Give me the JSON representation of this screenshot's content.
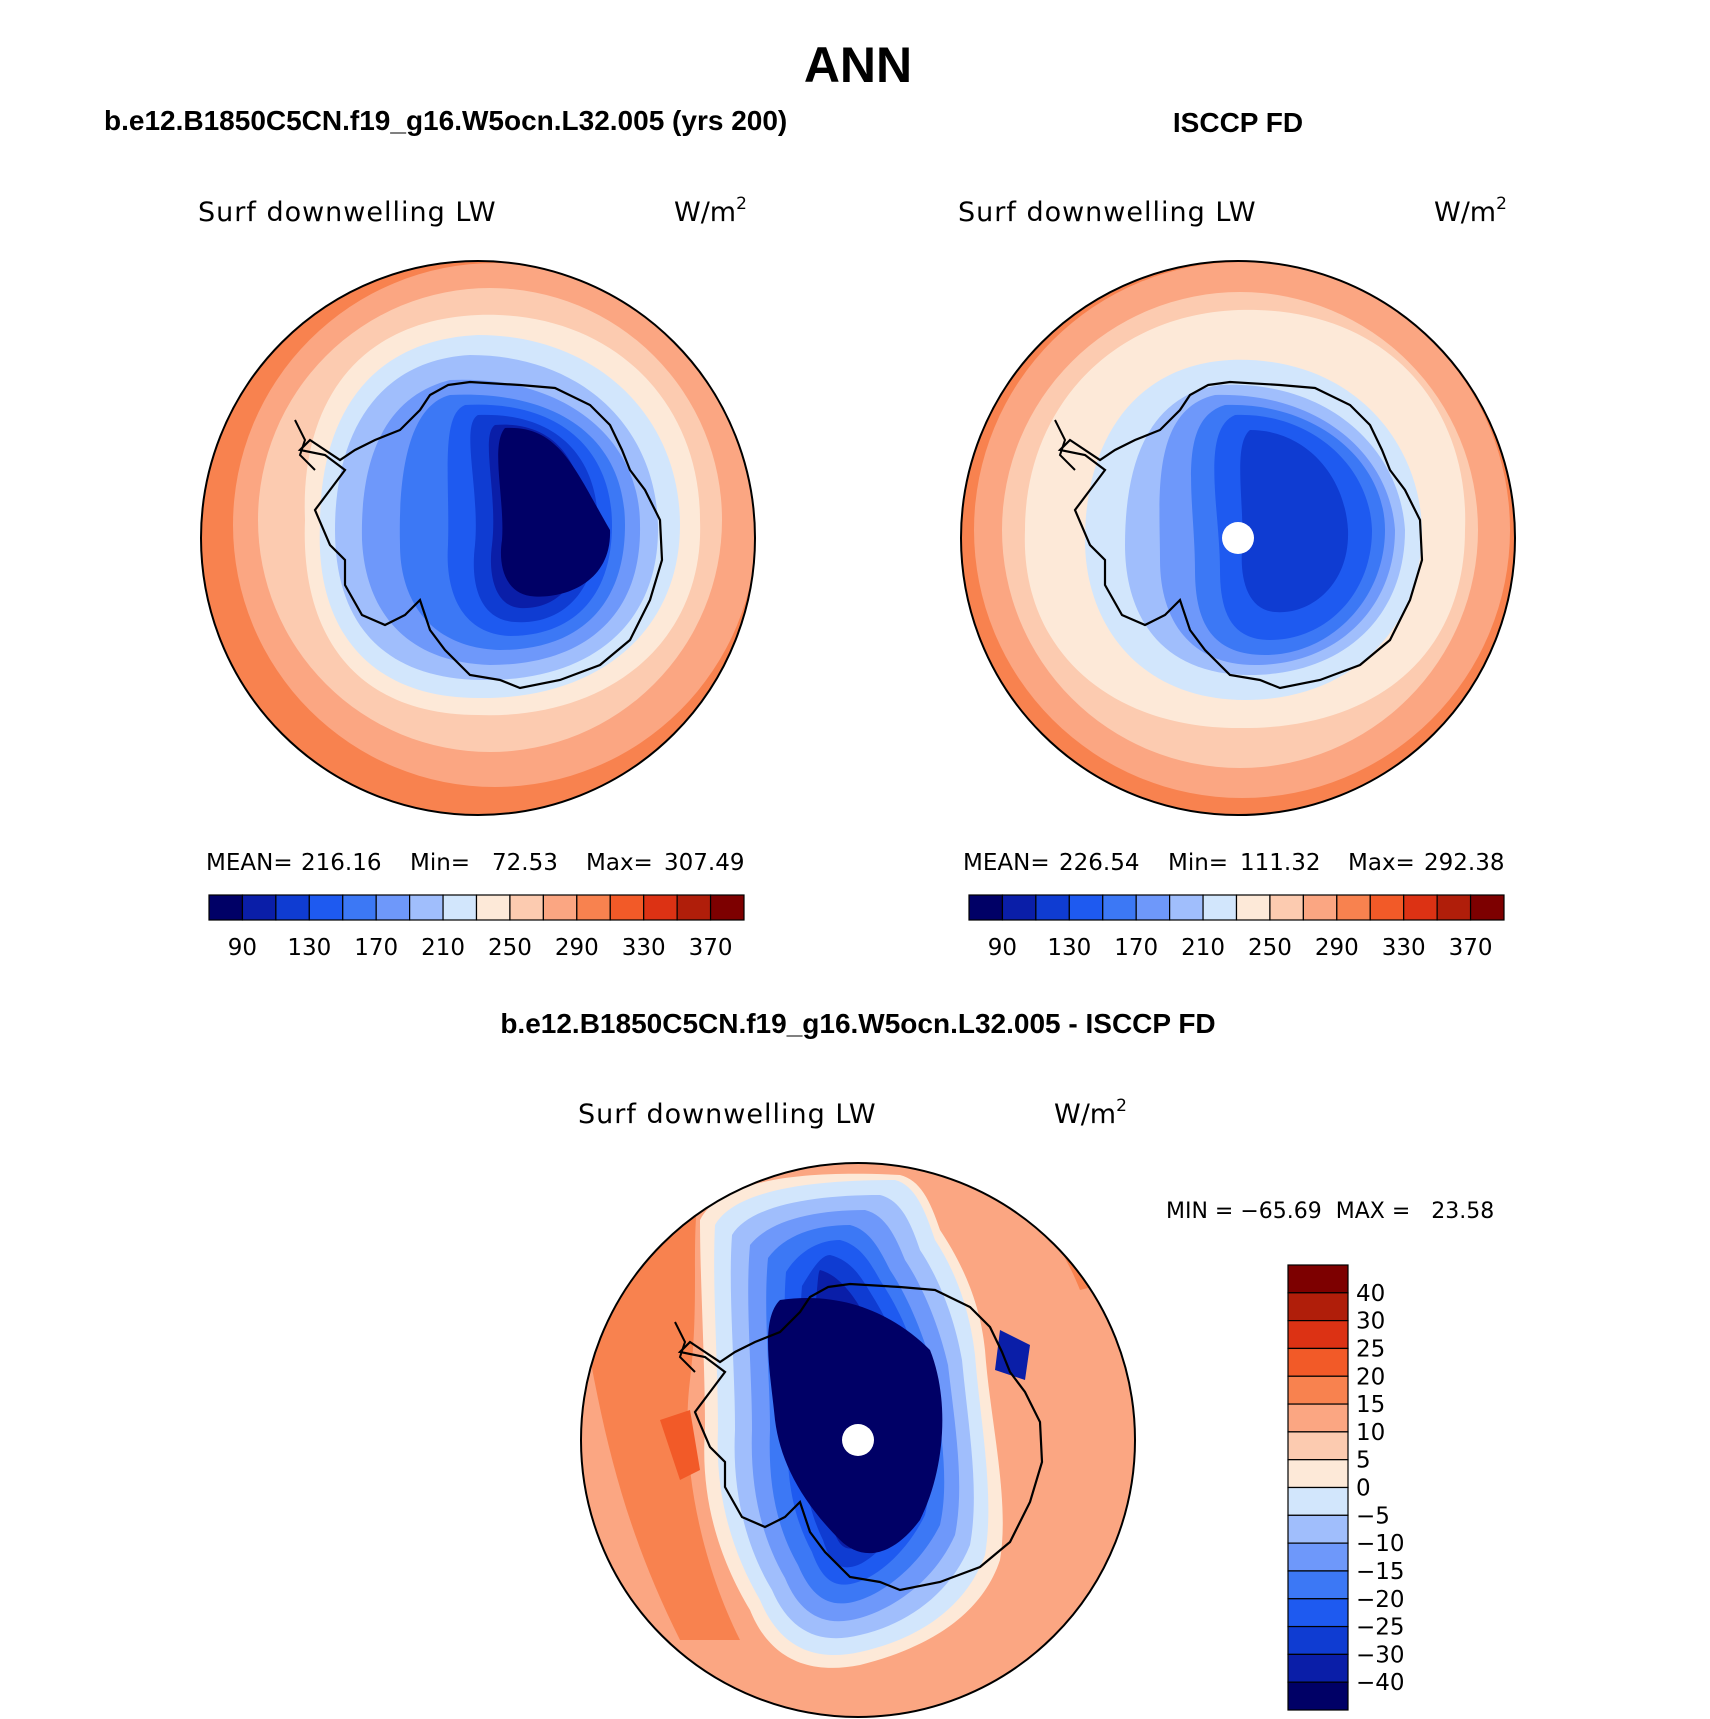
{
  "title": "ANN",
  "panels": [
    {
      "heading": "b.e12.B1850C5CN.f19_g16.W5ocn.L32.005 (yrs 200)",
      "variable": "Surf downwelling LW",
      "units_base": "W/m",
      "units_exp": "2",
      "stats": {
        "mean_label": "MEAN=",
        "mean": "216.16",
        "min_label": "Min=",
        "min": "72.53",
        "max_label": "Max=",
        "max": "307.49"
      },
      "has_pole_hole": false
    },
    {
      "heading": "ISCCP FD",
      "variable": "Surf downwelling LW",
      "units_base": "W/m",
      "units_exp": "2",
      "stats": {
        "mean_label": "MEAN=",
        "mean": "226.54",
        "min_label": "Min=",
        "min": "111.32",
        "max_label": "Max=",
        "max": "292.38"
      },
      "has_pole_hole": true
    }
  ],
  "abs_colorbar": {
    "colors": [
      "#000066",
      "#0a1ea8",
      "#0f3cd2",
      "#1e5af0",
      "#3c78f5",
      "#6e98fa",
      "#a0befc",
      "#d2e6fc",
      "#fde9d8",
      "#fccbb0",
      "#fba682",
      "#f8824f",
      "#f25a28",
      "#dc3214",
      "#b01e0a",
      "#7d0000"
    ],
    "labels": [
      "90",
      "130",
      "170",
      "210",
      "250",
      "290",
      "330",
      "370"
    ]
  },
  "diff_panel": {
    "heading": "b.e12.B1850C5CN.f19_g16.W5ocn.L32.005 - ISCCP FD",
    "variable": "Surf downwelling LW",
    "units_base": "W/m",
    "units_exp": "2",
    "minmax_text": "MIN = −65.69  MAX =   23.58"
  },
  "diff_colorbar": {
    "colors": [
      "#000066",
      "#0a1ea8",
      "#0f3cd2",
      "#1e5af0",
      "#3c78f5",
      "#6e98fa",
      "#a0befc",
      "#d2e6fc",
      "#fde9d8",
      "#fccbb0",
      "#fba682",
      "#f8824f",
      "#f25a28",
      "#dc3214",
      "#b01e0a",
      "#7d0000"
    ],
    "labels": [
      "40",
      "30",
      "25",
      "20",
      "15",
      "10",
      "5",
      "0",
      "−5",
      "−10",
      "−15",
      "−20",
      "−25",
      "−30",
      "−40"
    ]
  }
}
